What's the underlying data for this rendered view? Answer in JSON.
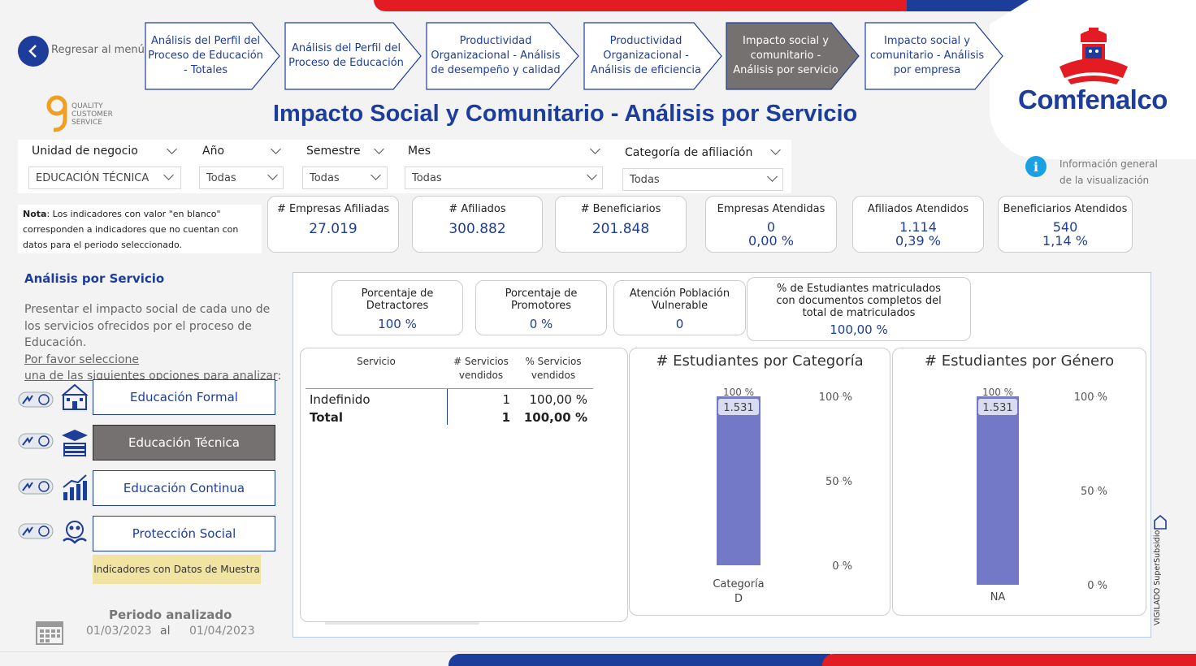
{
  "nav": {
    "back_label": "Regresar al menú",
    "tabs": [
      {
        "label": "Análisis del Perfil del Proceso de Educación - Totales",
        "active": false
      },
      {
        "label": "Análisis del Perfil del Proceso de Educación",
        "active": false
      },
      {
        "label": "Productividad Organizacional - Análisis de desempeño y calidad",
        "active": false
      },
      {
        "label": "Productividad Organizacional - Análisis de eficiencia",
        "active": false
      },
      {
        "label": "Impacto social y comunitario - Análisis por servicio",
        "active": true
      },
      {
        "label": "Impacto social y comunitario - Análisis por empresa",
        "active": false
      }
    ]
  },
  "brand": {
    "name": "Comfenalco",
    "quality_text": "QUALITY CUSTOMER SERVICE",
    "vigilado_text": "VIGILADO SuperSubsidio"
  },
  "page_title": "Impacto Social y Comunitario - Análisis por Servicio",
  "filters": {
    "unidad": {
      "label": "Unidad de negocio",
      "value": "EDUCACIÓN TÉCNICA"
    },
    "anio": {
      "label": "Año",
      "value": "Todas"
    },
    "semestre": {
      "label": "Semestre",
      "value": "Todas"
    },
    "mes": {
      "label": "Mes",
      "value": "Todas"
    },
    "categoria": {
      "label": "Categoría de afiliación",
      "value": "Todas"
    }
  },
  "info": {
    "line1": "Información general",
    "line2": "de la visualización"
  },
  "note": {
    "bold": "Nota",
    "text": ": Los indicadores con valor \"en blanco\" corresponden a indicadores que no cuentan con datos para el periodo seleccionado."
  },
  "kpis": [
    {
      "label": "# Empresas Afiliadas",
      "value": "27.019"
    },
    {
      "label": "# Afiliados",
      "value": "300.882"
    },
    {
      "label": "# Beneficiarios",
      "value": "201.848"
    },
    {
      "label": "Empresas Atendidas",
      "value": "0",
      "pct": "0,00 %"
    },
    {
      "label": "Afiliados Atendidos",
      "value": "1.114",
      "pct": "0,39 %"
    },
    {
      "label": "Beneficiarios Atendidos",
      "value": "540",
      "pct": "1,14 %"
    }
  ],
  "left_panel": {
    "title": "Análisis por Servicio",
    "desc1": "Presentar el impacto social de cada uno de los servicios ofrecidos por el proceso de Educación.",
    "desc2": "Por favor seleccione",
    "desc3": "una de las siguientes opciones para analizar",
    "desc3_end": ":",
    "buttons": [
      "Educación Formal",
      "Educación Técnica",
      "Educación Continua",
      "Protección Social"
    ],
    "sample_note": "Indicadores con Datos de Muestra",
    "period_title": "Periodo analizado",
    "period_from": "01/03/2023",
    "period_sep": "al",
    "period_to": "01/04/2023"
  },
  "mini_kpis": [
    {
      "label": "Porcentaje de Detractores",
      "value": "100 %"
    },
    {
      "label": "Porcentaje de Promotores",
      "value": "0 %"
    },
    {
      "label": "Atención Población Vulnerable",
      "value": "0"
    },
    {
      "label": "% de Estudiantes matriculados con documentos completos del total de matriculados",
      "value": "100,00 %"
    }
  ],
  "table": {
    "headers": [
      "Servicio",
      "# Servicios vendidos",
      "% Servicios vendidos"
    ],
    "rows": [
      {
        "servicio": "Indefinido",
        "vendidos": "1",
        "pct": "100,00 %"
      }
    ],
    "total": {
      "servicio": "Total",
      "vendidos": "1",
      "pct": "100,00 %"
    }
  },
  "chart_data": [
    {
      "type": "bar",
      "title": "# Estudiantes por Categoría",
      "categories": [
        "Categoría D"
      ],
      "values": [
        1531
      ],
      "value_labels": [
        "1.531"
      ],
      "pct_labels": [
        "100 %"
      ],
      "y_ticks": [
        "100 %",
        "50 %",
        "0 %"
      ],
      "ylim": [
        0,
        100
      ],
      "bar_color": "#7379c7"
    },
    {
      "type": "bar",
      "title": "# Estudiantes por Género",
      "categories": [
        "NA"
      ],
      "values": [
        1531
      ],
      "value_labels": [
        "1.531"
      ],
      "pct_labels": [
        "100 %"
      ],
      "y_ticks": [
        "100 %",
        "50 %",
        "0 %"
      ],
      "ylim": [
        0,
        100
      ],
      "bar_color": "#7379c7"
    }
  ],
  "colors": {
    "brand_blue": "#1d3d9b",
    "brand_red": "#e31b23",
    "bar": "#7379c7"
  }
}
